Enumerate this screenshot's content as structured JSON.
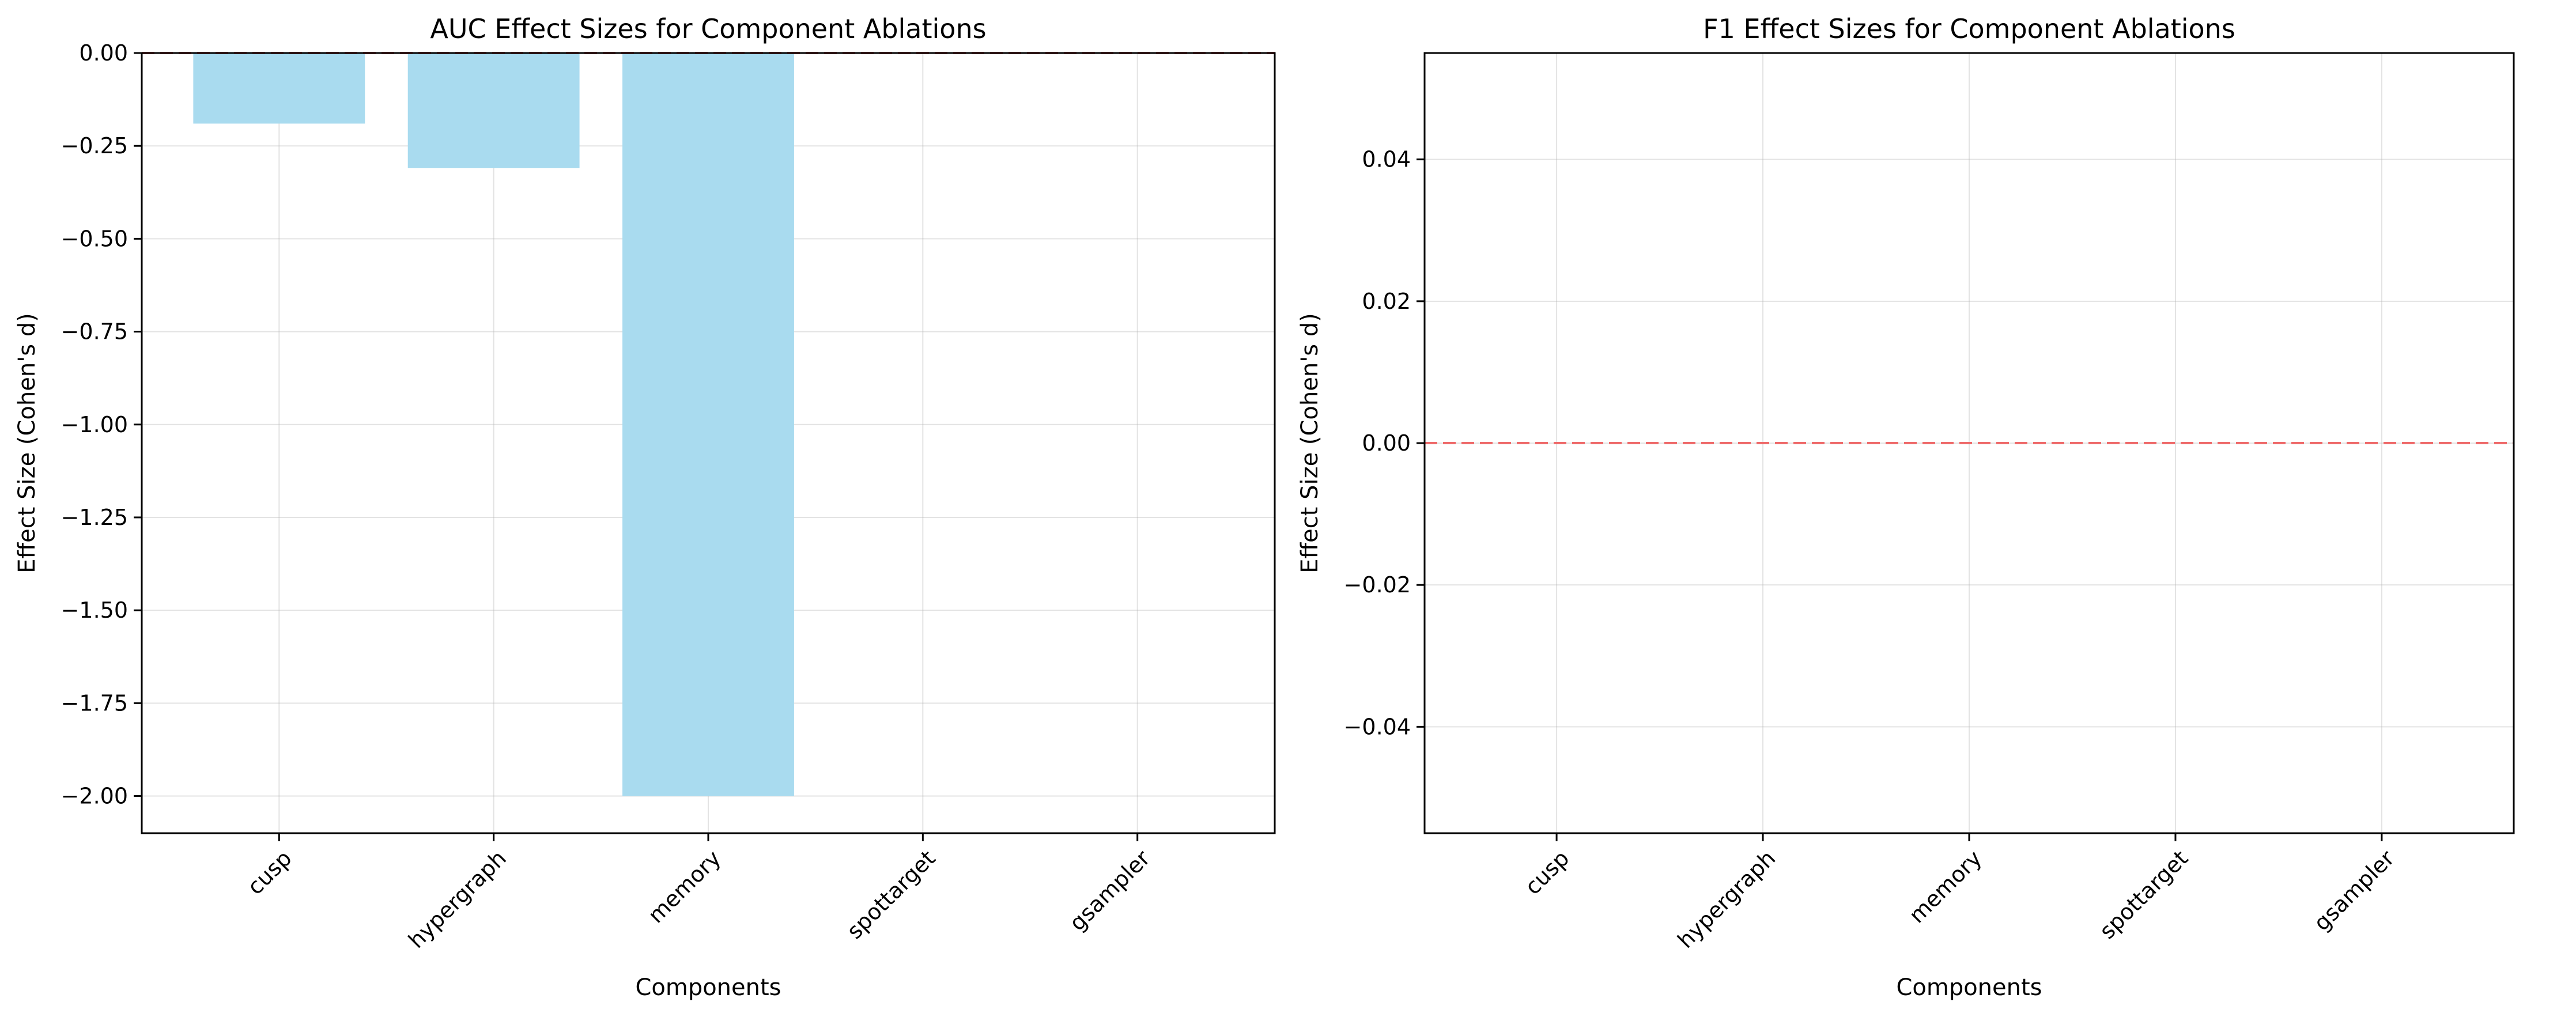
{
  "chart_data": [
    {
      "type": "bar",
      "title": "AUC Effect Sizes for Component Ablations",
      "xlabel": "Components",
      "ylabel": "Effect Size (Cohen's d)",
      "categories": [
        "cusp",
        "hypergraph",
        "memory",
        "spottarget",
        "gsampler"
      ],
      "values": [
        -0.19,
        -0.31,
        -2.0,
        0.0,
        0.0
      ],
      "ylim": [
        -2.1,
        0.0
      ],
      "yticks": [
        0.0,
        -0.25,
        -0.5,
        -0.75,
        -1.0,
        -1.25,
        -1.5,
        -1.75,
        -2.0
      ],
      "ytick_labels": [
        "0.00",
        "−0.25",
        "−0.50",
        "−0.75",
        "−1.00",
        "−1.25",
        "−1.50",
        "−1.75",
        "−2.00"
      ],
      "reference_line": 0.0,
      "grid": true,
      "bar_color": "#a9dbef",
      "reference_line_color": "#ee6b6b"
    },
    {
      "type": "bar",
      "title": "F1 Effect Sizes for Component Ablations",
      "xlabel": "Components",
      "ylabel": "Effect Size (Cohen's d)",
      "categories": [
        "cusp",
        "hypergraph",
        "memory",
        "spottarget",
        "gsampler"
      ],
      "values": [
        0.0,
        0.0,
        0.0,
        0.0,
        0.0
      ],
      "ylim": [
        -0.055,
        0.055
      ],
      "yticks": [
        0.04,
        0.02,
        0.0,
        -0.02,
        -0.04
      ],
      "ytick_labels": [
        "0.04",
        "0.02",
        "0.00",
        "−0.02",
        "−0.04"
      ],
      "reference_line": 0.0,
      "grid": true,
      "bar_color": "#a9dbef",
      "reference_line_color": "#ee6b6b"
    }
  ]
}
